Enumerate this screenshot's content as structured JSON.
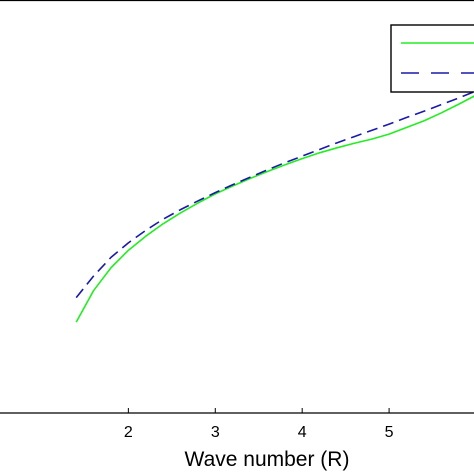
{
  "chart_data": {
    "type": "line",
    "title": "",
    "xlabel": "Wave number (R)",
    "ylabel": "",
    "xlim": [
      0.5,
      6.0
    ],
    "ylim": [
      0.0,
      1.0
    ],
    "x_ticks": [
      2,
      3,
      4,
      5
    ],
    "x_tick_labels": [
      "2",
      "3",
      "4",
      "5"
    ],
    "grid": false,
    "legend": {
      "placement": "top-right",
      "entries": [
        {
          "series_index": 0,
          "label": ""
        },
        {
          "series_index": 1,
          "label": ""
        }
      ]
    },
    "series": [
      {
        "style": "solid",
        "color": "#22ee22",
        "x": [
          1.4,
          1.6,
          1.8,
          2.0,
          2.2,
          2.4,
          2.6,
          2.8,
          3.0,
          3.2,
          3.4,
          3.6,
          3.8,
          4.0,
          4.2,
          4.4,
          4.6,
          4.8,
          5.0,
          5.2,
          5.4,
          5.6,
          5.8,
          6.0
        ],
        "y": [
          0.219,
          0.295,
          0.35,
          0.392,
          0.426,
          0.456,
          0.482,
          0.506,
          0.528,
          0.547,
          0.565,
          0.582,
          0.598,
          0.613,
          0.627,
          0.639,
          0.65,
          0.66,
          0.672,
          0.688,
          0.704,
          0.723,
          0.744,
          0.766
        ]
      },
      {
        "style": "dashed",
        "color": "#1a1aaa",
        "x": [
          1.4,
          1.6,
          1.8,
          2.0,
          2.2,
          2.4,
          2.6,
          2.8,
          3.0,
          3.2,
          3.4,
          3.6,
          3.8,
          4.0,
          4.2,
          4.4,
          4.6,
          4.8,
          5.0,
          5.2,
          5.4,
          5.6,
          5.8,
          6.0
        ],
        "y": [
          0.278,
          0.33,
          0.375,
          0.41,
          0.44,
          0.467,
          0.49,
          0.511,
          0.531,
          0.55,
          0.568,
          0.586,
          0.603,
          0.619,
          0.635,
          0.651,
          0.666,
          0.681,
          0.696,
          0.712,
          0.727,
          0.743,
          0.759,
          0.776
        ]
      }
    ]
  }
}
